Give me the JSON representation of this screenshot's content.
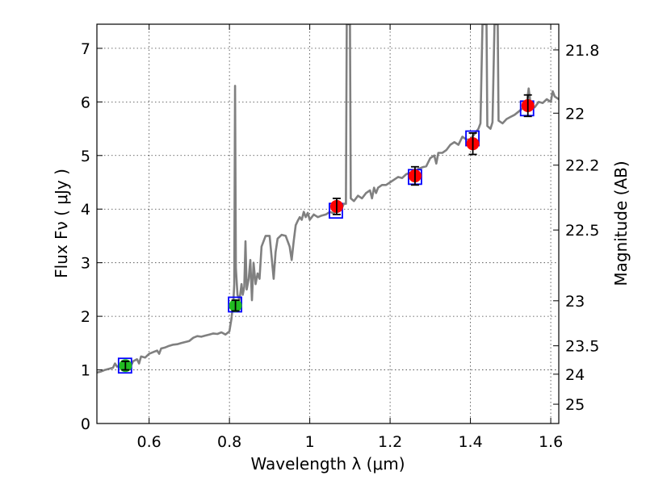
{
  "chart_data": {
    "type": "scatter",
    "xlabel": "Wavelength  λ (μm)",
    "ylabel": "Flux  Fν  ( μJy )",
    "ylabel_right": "Magnitude (AB)",
    "xlim": [
      0.47,
      1.62
    ],
    "ylim": [
      0,
      7.45
    ],
    "x_ticks": [
      0.6,
      0.8,
      1.0,
      1.2,
      1.4,
      1.6
    ],
    "x_tick_labels": [
      "0.6",
      "0.8",
      "1",
      "1.2",
      "1.4",
      "1.6"
    ],
    "y_ticks": [
      0,
      1,
      2,
      3,
      4,
      5,
      6,
      7
    ],
    "y_tick_labels": [
      "0",
      "1",
      "2",
      "3",
      "4",
      "5",
      "6",
      "7"
    ],
    "right_ticks": [
      {
        "label": "21.8",
        "flux": 6.97
      },
      {
        "label": "22",
        "flux": 5.79
      },
      {
        "label": "22.2",
        "flux": 4.82
      },
      {
        "label": "22.5",
        "flux": 3.61
      },
      {
        "label": "23",
        "flux": 2.29
      },
      {
        "label": "23.5",
        "flux": 1.45
      },
      {
        "label": "24",
        "flux": 0.92
      },
      {
        "label": "25",
        "flux": 0.36
      }
    ],
    "grid": true,
    "series": [
      {
        "kind": "spectrum_line",
        "color": "#808080",
        "points": [
          [
            0.47,
            0.95
          ],
          [
            0.48,
            0.97
          ],
          [
            0.49,
            1.0
          ],
          [
            0.5,
            1.02
          ],
          [
            0.51,
            1.04
          ],
          [
            0.515,
            1.12
          ],
          [
            0.52,
            1.06
          ],
          [
            0.53,
            1.09
          ],
          [
            0.54,
            1.12
          ],
          [
            0.55,
            1.14
          ],
          [
            0.555,
            1.08
          ],
          [
            0.56,
            1.16
          ],
          [
            0.57,
            1.2
          ],
          [
            0.575,
            1.12
          ],
          [
            0.58,
            1.25
          ],
          [
            0.59,
            1.23
          ],
          [
            0.6,
            1.3
          ],
          [
            0.61,
            1.33
          ],
          [
            0.62,
            1.36
          ],
          [
            0.625,
            1.3
          ],
          [
            0.63,
            1.4
          ],
          [
            0.64,
            1.42
          ],
          [
            0.65,
            1.45
          ],
          [
            0.66,
            1.47
          ],
          [
            0.67,
            1.48
          ],
          [
            0.68,
            1.5
          ],
          [
            0.69,
            1.52
          ],
          [
            0.7,
            1.54
          ],
          [
            0.71,
            1.6
          ],
          [
            0.72,
            1.63
          ],
          [
            0.73,
            1.62
          ],
          [
            0.74,
            1.64
          ],
          [
            0.75,
            1.66
          ],
          [
            0.76,
            1.68
          ],
          [
            0.77,
            1.67
          ],
          [
            0.78,
            1.7
          ],
          [
            0.79,
            1.66
          ],
          [
            0.8,
            1.72
          ],
          [
            0.805,
            1.95
          ],
          [
            0.81,
            2.3
          ],
          [
            0.812,
            2.6
          ],
          [
            0.814,
            6.3
          ],
          [
            0.816,
            2.9
          ],
          [
            0.82,
            2.4
          ],
          [
            0.825,
            2.3
          ],
          [
            0.83,
            2.6
          ],
          [
            0.833,
            2.4
          ],
          [
            0.837,
            2.55
          ],
          [
            0.84,
            3.4
          ],
          [
            0.843,
            2.5
          ],
          [
            0.848,
            2.7
          ],
          [
            0.852,
            3.05
          ],
          [
            0.856,
            2.3
          ],
          [
            0.86,
            3.0
          ],
          [
            0.865,
            2.6
          ],
          [
            0.87,
            2.8
          ],
          [
            0.875,
            2.7
          ],
          [
            0.88,
            3.3
          ],
          [
            0.89,
            3.5
          ],
          [
            0.9,
            3.5
          ],
          [
            0.905,
            3.1
          ],
          [
            0.91,
            2.7
          ],
          [
            0.915,
            3.2
          ],
          [
            0.92,
            3.45
          ],
          [
            0.93,
            3.52
          ],
          [
            0.94,
            3.5
          ],
          [
            0.95,
            3.3
          ],
          [
            0.955,
            3.05
          ],
          [
            0.96,
            3.4
          ],
          [
            0.965,
            3.7
          ],
          [
            0.97,
            3.78
          ],
          [
            0.975,
            3.85
          ],
          [
            0.98,
            3.8
          ],
          [
            0.985,
            3.95
          ],
          [
            0.99,
            3.85
          ],
          [
            0.995,
            3.93
          ],
          [
            1.0,
            3.8
          ],
          [
            1.005,
            3.85
          ],
          [
            1.01,
            3.9
          ],
          [
            1.02,
            3.85
          ],
          [
            1.03,
            3.88
          ],
          [
            1.04,
            3.9
          ],
          [
            1.05,
            3.95
          ],
          [
            1.06,
            3.92
          ],
          [
            1.07,
            4.0
          ],
          [
            1.08,
            4.02
          ],
          [
            1.085,
            4.1
          ],
          [
            1.09,
            4.1
          ],
          [
            1.092,
            7.45
          ],
          [
            1.1,
            7.45
          ],
          [
            1.102,
            4.2
          ],
          [
            1.11,
            4.15
          ],
          [
            1.12,
            4.25
          ],
          [
            1.13,
            4.2
          ],
          [
            1.14,
            4.3
          ],
          [
            1.15,
            4.35
          ],
          [
            1.155,
            4.2
          ],
          [
            1.16,
            4.4
          ],
          [
            1.165,
            4.3
          ],
          [
            1.17,
            4.4
          ],
          [
            1.18,
            4.45
          ],
          [
            1.19,
            4.45
          ],
          [
            1.2,
            4.5
          ],
          [
            1.21,
            4.55
          ],
          [
            1.22,
            4.6
          ],
          [
            1.23,
            4.58
          ],
          [
            1.24,
            4.65
          ],
          [
            1.25,
            4.68
          ],
          [
            1.26,
            4.7
          ],
          [
            1.27,
            4.75
          ],
          [
            1.28,
            4.78
          ],
          [
            1.29,
            4.8
          ],
          [
            1.3,
            4.95
          ],
          [
            1.31,
            5.0
          ],
          [
            1.315,
            4.85
          ],
          [
            1.32,
            5.05
          ],
          [
            1.33,
            5.05
          ],
          [
            1.34,
            5.1
          ],
          [
            1.35,
            5.2
          ],
          [
            1.36,
            5.25
          ],
          [
            1.37,
            5.2
          ],
          [
            1.38,
            5.35
          ],
          [
            1.39,
            5.3
          ],
          [
            1.4,
            5.3
          ],
          [
            1.41,
            5.4
          ],
          [
            1.42,
            5.5
          ],
          [
            1.425,
            5.6
          ],
          [
            1.43,
            7.45
          ],
          [
            1.44,
            7.45
          ],
          [
            1.442,
            5.55
          ],
          [
            1.45,
            5.5
          ],
          [
            1.455,
            5.62
          ],
          [
            1.46,
            7.45
          ],
          [
            1.468,
            7.45
          ],
          [
            1.47,
            5.65
          ],
          [
            1.48,
            5.6
          ],
          [
            1.49,
            5.68
          ],
          [
            1.5,
            5.72
          ],
          [
            1.51,
            5.76
          ],
          [
            1.52,
            5.82
          ],
          [
            1.53,
            5.88
          ],
          [
            1.54,
            5.95
          ],
          [
            1.545,
            6.25
          ],
          [
            1.55,
            5.95
          ],
          [
            1.56,
            5.9
          ],
          [
            1.57,
            6.0
          ],
          [
            1.58,
            5.98
          ],
          [
            1.59,
            6.05
          ],
          [
            1.6,
            6.0
          ],
          [
            1.605,
            6.2
          ],
          [
            1.61,
            6.1
          ],
          [
            1.62,
            6.05
          ]
        ]
      },
      {
        "kind": "model_boxes",
        "color": "#0000ff",
        "points": [
          [
            0.54,
            1.08
          ],
          [
            0.814,
            2.22
          ],
          [
            1.065,
            3.97
          ],
          [
            1.262,
            4.6
          ],
          [
            1.405,
            5.32
          ],
          [
            1.541,
            5.88
          ]
        ]
      },
      {
        "kind": "observed_points",
        "color_green": "#22bb22",
        "color_red": "#ff0000",
        "points": [
          {
            "x": 0.541,
            "y": 1.08,
            "err": 0.08,
            "color": "#22bb22"
          },
          {
            "x": 0.815,
            "y": 2.2,
            "err": 0.1,
            "color": "#22bb22"
          },
          {
            "x": 1.067,
            "y": 4.05,
            "err": 0.15,
            "color": "#ff0000"
          },
          {
            "x": 1.262,
            "y": 4.62,
            "err": 0.17,
            "color": "#ff0000"
          },
          {
            "x": 1.406,
            "y": 5.22,
            "err": 0.2,
            "color": "#ff0000"
          },
          {
            "x": 1.543,
            "y": 5.93,
            "err": 0.2,
            "color": "#ff0000"
          }
        ]
      }
    ]
  }
}
